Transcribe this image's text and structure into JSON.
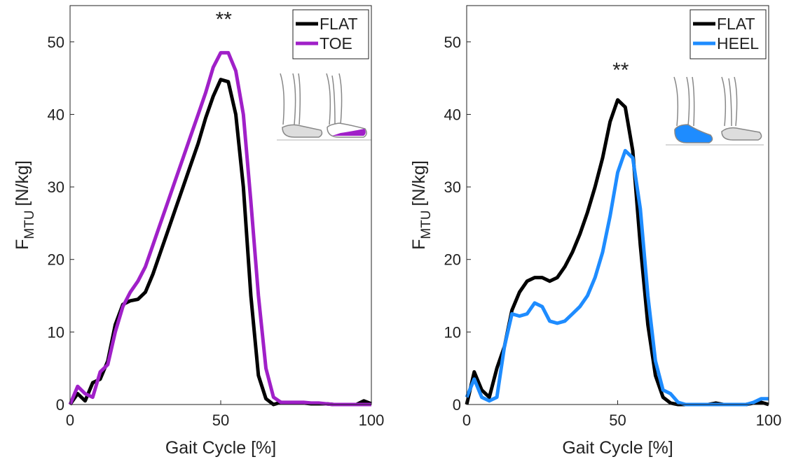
{
  "chart_data": [
    {
      "type": "line",
      "xlabel": "Gait Cycle [%]",
      "ylabel": {
        "main": "F",
        "sub": "MTU",
        "unit": "[N/kg]"
      },
      "xlim": [
        0,
        100
      ],
      "ylim": [
        0,
        55
      ],
      "xticks": [
        0,
        50,
        100
      ],
      "yticks": [
        0,
        10,
        20,
        30,
        40,
        50
      ],
      "legend": "upper right",
      "annotation": {
        "text": "**",
        "x": 51,
        "y": 53.5
      },
      "x": [
        0,
        2.5,
        5,
        7.5,
        10,
        12.5,
        15,
        17.5,
        20,
        22.5,
        25,
        27.5,
        30,
        32.5,
        35,
        37.5,
        40,
        42.5,
        45,
        47.5,
        50,
        52.5,
        55,
        57.5,
        60,
        62.5,
        65,
        67.5,
        70,
        72.5,
        75,
        77.5,
        80,
        82.5,
        85,
        87.5,
        90,
        92.5,
        95,
        97.5,
        100
      ],
      "series": [
        {
          "name": "FLAT",
          "color": "#000000",
          "values": [
            0,
            1.5,
            0.5,
            3,
            3.5,
            6,
            11,
            13.8,
            14.3,
            14.5,
            15.5,
            18,
            21,
            24,
            27,
            30,
            33,
            36,
            39.5,
            42.5,
            44.8,
            44.5,
            40,
            30,
            15,
            4,
            0.8,
            0,
            0.3,
            0.2,
            0.2,
            0.2,
            0.1,
            0.1,
            0.1,
            0,
            0,
            0,
            0,
            0.5,
            0.1
          ]
        },
        {
          "name": "TOE",
          "color": "#a020c8",
          "values": [
            0,
            2.5,
            1.5,
            1,
            4.5,
            5.5,
            10,
            13.5,
            15.5,
            17,
            19,
            22,
            25,
            28,
            31,
            34,
            37,
            40,
            43,
            46.5,
            48.5,
            48.5,
            46,
            40,
            28,
            15,
            5,
            1,
            0.3,
            0.3,
            0.3,
            0.3,
            0.2,
            0.2,
            0.1,
            0,
            0,
            0,
            0,
            0,
            0
          ]
        }
      ]
    },
    {
      "type": "line",
      "xlabel": "Gait Cycle [%]",
      "ylabel": {
        "main": "F",
        "sub": "MTU",
        "unit": "[N/kg]"
      },
      "xlim": [
        0,
        100
      ],
      "ylim": [
        0,
        55
      ],
      "xticks": [
        0,
        50,
        100
      ],
      "yticks": [
        0,
        10,
        20,
        30,
        40,
        50
      ],
      "legend": "upper right",
      "annotation": {
        "text": "**",
        "x": 51,
        "y": 46.5
      },
      "x": [
        0,
        2.5,
        5,
        7.5,
        10,
        12.5,
        15,
        17.5,
        20,
        22.5,
        25,
        27.5,
        30,
        32.5,
        35,
        37.5,
        40,
        42.5,
        45,
        47.5,
        50,
        52.5,
        55,
        57.5,
        60,
        62.5,
        65,
        67.5,
        70,
        72.5,
        75,
        77.5,
        80,
        82.5,
        85,
        87.5,
        90,
        92.5,
        95,
        97.5,
        100
      ],
      "series": [
        {
          "name": "FLAT",
          "color": "#000000",
          "values": [
            0,
            4.5,
            2,
            1,
            5,
            8,
            13,
            15.5,
            17,
            17.5,
            17.5,
            17,
            17.5,
            19,
            21,
            23.5,
            26.5,
            30,
            34,
            39,
            42,
            41,
            35,
            22,
            11,
            4,
            1,
            0.2,
            0,
            0,
            0,
            0,
            0,
            0.2,
            0,
            0,
            0,
            0,
            0.2,
            0.3,
            0
          ]
        },
        {
          "name": "HEEL",
          "color": "#1e8cff",
          "values": [
            1,
            3.5,
            1,
            0.5,
            1,
            8,
            12.5,
            12.2,
            12.5,
            14,
            13.5,
            11.5,
            11.2,
            11.5,
            12.5,
            13.5,
            15,
            17.5,
            21,
            26,
            32,
            35,
            34,
            27,
            15,
            6,
            2,
            1.5,
            0.3,
            0,
            0,
            0,
            0,
            0,
            0,
            0,
            0,
            0,
            0.3,
            0.8,
            0.8
          ]
        }
      ]
    }
  ]
}
